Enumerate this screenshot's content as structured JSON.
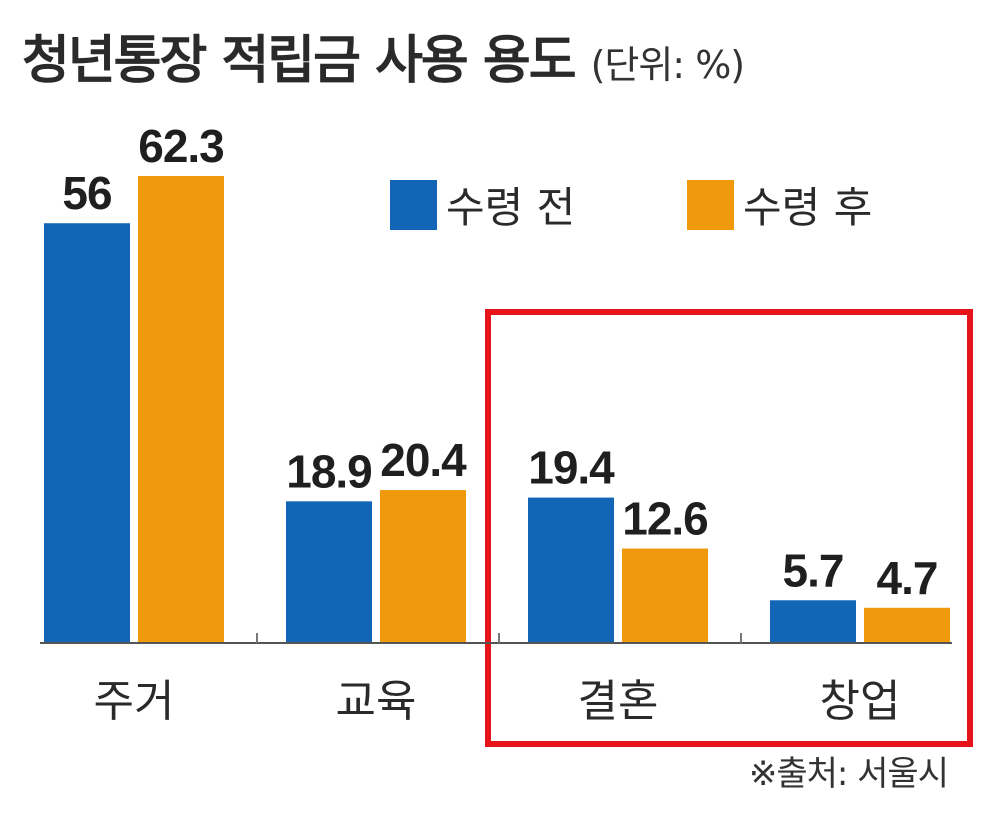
{
  "chart_data": {
    "type": "bar",
    "title": "청년통장 적립금 사용 용도",
    "unit_label": "(단위: %)",
    "categories": [
      "주거",
      "교육",
      "결혼",
      "창업"
    ],
    "series": [
      {
        "name": "수령 전",
        "values": [
          56,
          18.9,
          19.4,
          5.7
        ],
        "value_labels": [
          "56",
          "18.9",
          "19.4",
          "5.7"
        ],
        "color": "#1266b5"
      },
      {
        "name": "수령 후",
        "values": [
          62.3,
          20.4,
          12.6,
          4.7
        ],
        "value_labels": [
          "62.3",
          "20.4",
          "12.6",
          "4.7"
        ],
        "color": "#f0990c"
      }
    ],
    "ylim": [
      0,
      62.3
    ],
    "grid": false,
    "legend_position": "top-right",
    "highlight": {
      "categories": [
        "결혼",
        "창업"
      ],
      "color": "#e8141b"
    },
    "source": "※출처: 서울시"
  }
}
